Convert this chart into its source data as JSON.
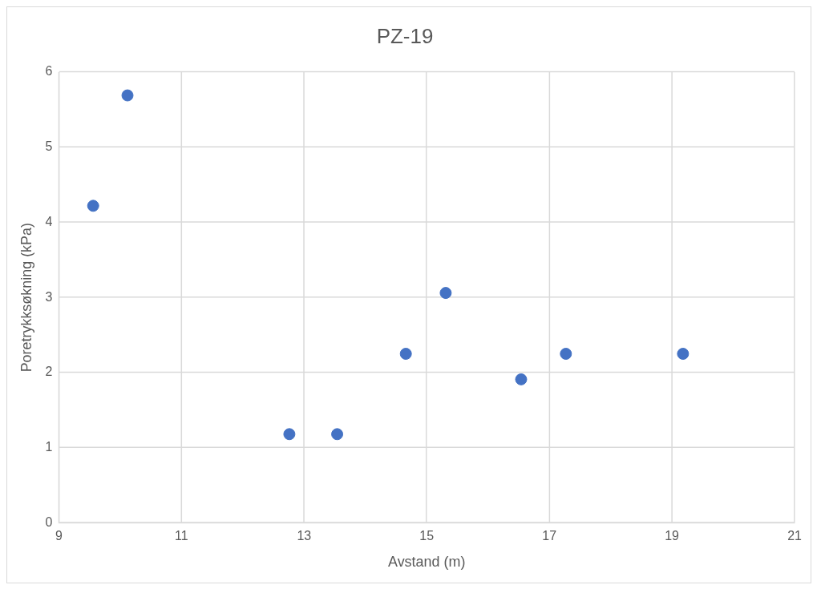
{
  "chart_data": {
    "type": "scatter",
    "title": "PZ-19",
    "xlabel": "Avstand (m)",
    "ylabel": "Poretrykksøkning (kPa)",
    "x": [
      9.56,
      10.12,
      12.76,
      13.54,
      14.66,
      15.31,
      16.54,
      17.27,
      19.18
    ],
    "series": [
      {
        "color": "#4472c4",
        "values": [
          4.22,
          5.69,
          1.18,
          1.18,
          2.25,
          3.06,
          1.91,
          2.25,
          2.25
        ]
      }
    ],
    "xlim": [
      9,
      21
    ],
    "xticks": [
      9,
      11,
      13,
      15,
      17,
      19,
      21
    ],
    "ylim": [
      0,
      6
    ],
    "yticks": [
      0,
      1,
      2,
      3,
      4,
      5,
      6
    ],
    "grid": true,
    "legend": false,
    "marker": "circle"
  }
}
